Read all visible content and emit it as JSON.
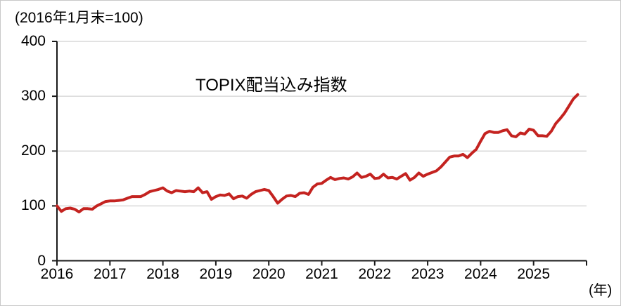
{
  "chart_data": {
    "type": "line",
    "title": "TOPIX配当込み指数",
    "unit_note": "(2016年1月末=100)",
    "x_unit_label": "(年)",
    "frequency": "monthly",
    "x_start": "2016-01",
    "x_end": "2025-11",
    "x_tick_labels": [
      "2016",
      "2017",
      "2018",
      "2019",
      "2020",
      "2021",
      "2022",
      "2023",
      "2024",
      "2025"
    ],
    "y_ticks": [
      0,
      100,
      200,
      300,
      400
    ],
    "ylim": [
      0,
      400
    ],
    "grid": true,
    "legend_position": "inline-label",
    "line_color": "#c42320",
    "grid_color": "#d9d9d9",
    "axis_color": "#1a1a1a",
    "values": [
      100,
      90,
      95,
      96,
      94,
      89,
      95,
      95,
      94,
      100,
      104,
      108,
      109,
      109,
      110,
      111,
      114,
      117,
      117,
      117,
      121,
      126,
      128,
      130,
      133,
      127,
      124,
      128,
      127,
      126,
      127,
      126,
      133,
      124,
      126,
      112,
      117,
      120,
      119,
      122,
      113,
      117,
      118,
      114,
      121,
      126,
      128,
      130,
      128,
      117,
      105,
      112,
      118,
      119,
      117,
      123,
      124,
      121,
      134,
      140,
      141,
      147,
      152,
      148,
      150,
      151,
      149,
      153,
      160,
      152,
      154,
      158,
      150,
      151,
      158,
      151,
      152,
      149,
      154,
      159,
      147,
      152,
      160,
      154,
      158,
      161,
      164,
      171,
      180,
      189,
      191,
      191,
      194,
      188,
      196,
      203,
      218,
      232,
      236,
      234,
      234,
      237,
      239,
      228,
      226,
      233,
      231,
      240,
      238,
      228,
      228,
      227,
      236,
      250,
      259,
      269,
      282,
      295,
      303
    ]
  }
}
